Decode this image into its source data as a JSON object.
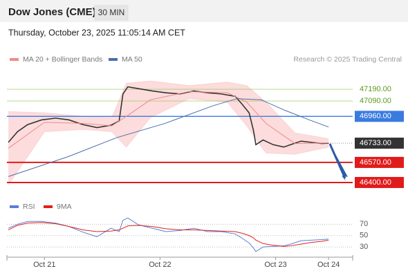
{
  "header": {
    "title": "Dow Jones (CME)",
    "timeframe": "30 MIN",
    "date": "Thursday, October 23, 2025 11:05:14 AM CET",
    "credit": "Research © 2025 Trading Central"
  },
  "chart_data": [
    {
      "type": "line",
      "xlim": [
        -7.8,
        64
      ],
      "ylim": [
        46306,
        47360
      ],
      "series": [
        {
          "color": "#333333",
          "x": [
            -7.5,
            -5.6,
            -3.5,
            -0.6,
            2.3,
            5.1,
            8.0,
            10.9,
            13.8,
            15.5,
            16.3,
            17.3,
            19.5,
            22.4,
            25.2,
            28.1,
            31.0,
            33.9,
            36.7,
            39.6,
            41.1,
            42.5,
            43.4,
            43.9,
            45.4,
            47.5,
            49.7,
            51.1,
            53.3,
            55.4,
            57.6,
            59.0
          ],
          "values": [
            46740,
            46830,
            46890,
            46930,
            46945,
            46930,
            46890,
            46865,
            46885,
            46920,
            47150,
            47210,
            47195,
            47175,
            47160,
            47150,
            47175,
            47160,
            47150,
            47130,
            47060,
            46990,
            46840,
            46720,
            46760,
            46720,
            46700,
            46720,
            46750,
            46740,
            46730,
            46733
          ]
        },
        {
          "name": "MA 20 + Bollinger Bands",
          "color": "#f08a8a",
          "x": [
            -7.5,
            0,
            8,
            14,
            17,
            22,
            30,
            38,
            42,
            46,
            52,
            59
          ],
          "values": [
            46690,
            46910,
            46900,
            46880,
            46960,
            47100,
            47170,
            47160,
            47080,
            46900,
            46730,
            46735
          ]
        },
        {
          "name": "MA 50",
          "color": "#4a6ea8",
          "x": [
            -7.5,
            5,
            15,
            25,
            35,
            40,
            45,
            50,
            55,
            59
          ],
          "values": [
            46450,
            46620,
            46780,
            46900,
            47050,
            47110,
            47100,
            47010,
            46930,
            46870
          ]
        }
      ],
      "band": {
        "color": "#fbd3d3",
        "x": [
          -7.5,
          0,
          8,
          14,
          17,
          22,
          30,
          38,
          42,
          46,
          52,
          59
        ],
        "upper": [
          47000,
          46990,
          46960,
          46950,
          47240,
          47260,
          47220,
          47250,
          47220,
          47080,
          46820,
          46770
        ],
        "lower": [
          46380,
          46830,
          46850,
          46830,
          46700,
          46950,
          47110,
          47080,
          46880,
          46650,
          46640,
          46700
        ]
      },
      "levels": [
        {
          "value": 47190,
          "label": "47190.00",
          "color": "#8bc34a",
          "style": "text"
        },
        {
          "value": 47090,
          "label": "47090.00",
          "color": "#8bc34a",
          "style": "text"
        },
        {
          "value": 46960,
          "label": "46960.00",
          "color": "#3a7be0",
          "style": "box"
        },
        {
          "value": 46733,
          "label": "46733.00",
          "color": "#333333",
          "style": "current"
        },
        {
          "value": 46570,
          "label": "46570.00",
          "color": "#e01b1b",
          "style": "box"
        },
        {
          "value": 46400,
          "label": "46400.00",
          "color": "#e01b1b",
          "style": "box"
        }
      ]
    },
    {
      "type": "line",
      "xlim": [
        -7.8,
        64
      ],
      "ylim": [
        12,
        85
      ],
      "xticks": [
        {
          "value": 0,
          "label": "Oct 21"
        },
        {
          "value": 24,
          "label": "Oct 22"
        },
        {
          "value": 48,
          "label": "Oct 23"
        },
        {
          "value": 59,
          "label": "Oct 24"
        }
      ],
      "yticks": [
        70,
        50,
        30
      ],
      "series": [
        {
          "name": "RSI",
          "color": "#5b7fd4",
          "x": [
            -7.5,
            -5.6,
            -3.5,
            -0.6,
            2.3,
            5.1,
            8.0,
            10.9,
            13.8,
            15.5,
            16.3,
            17.3,
            19.5,
            22.4,
            25.2,
            28.1,
            31.0,
            33.9,
            36.7,
            39.6,
            41.1,
            42.5,
            43.4,
            43.9,
            45.4,
            47.5,
            49.7,
            51.1,
            53.3,
            55.4,
            57.6,
            59.0
          ],
          "values": [
            63,
            70,
            75,
            75,
            72,
            66,
            56,
            48,
            63,
            57,
            77,
            81,
            69,
            63,
            57,
            59,
            63,
            57,
            57,
            53,
            45,
            37,
            28,
            22,
            30,
            31,
            32,
            35,
            41,
            42,
            43,
            44
          ]
        },
        {
          "name": "9MA",
          "color": "#e02020",
          "x": [
            -7.5,
            -5.6,
            -3.5,
            -0.6,
            2.3,
            5.1,
            8.0,
            10.9,
            13.8,
            15.5,
            16.3,
            17.3,
            19.5,
            22.4,
            25.2,
            28.1,
            31.0,
            33.9,
            36.7,
            39.6,
            41.1,
            42.5,
            43.4,
            43.9,
            45.4,
            47.5,
            49.7,
            51.1,
            53.3,
            55.4,
            57.6,
            59.0
          ],
          "values": [
            60,
            68,
            72,
            73,
            71,
            66,
            60,
            57,
            58,
            60,
            63,
            67,
            68,
            66,
            62,
            60,
            60,
            59,
            58,
            57,
            54,
            50,
            46,
            42,
            36,
            33,
            31,
            32,
            35,
            38,
            40,
            42
          ]
        }
      ]
    }
  ]
}
